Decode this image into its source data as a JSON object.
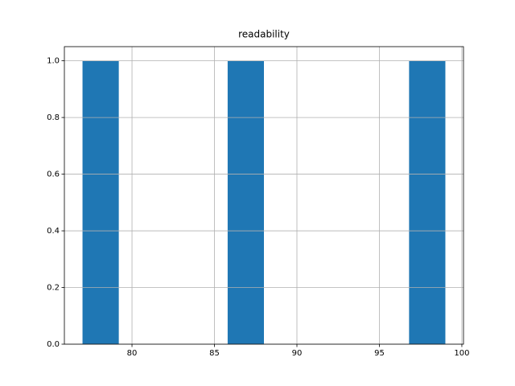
{
  "chart_data": {
    "type": "histogram",
    "title": "readability",
    "bins": [
      77,
      79.2,
      81.4,
      83.6,
      85.8,
      88,
      90.2,
      92.4,
      94.6,
      96.8,
      99
    ],
    "counts": [
      1,
      0,
      0,
      0,
      1,
      0,
      0,
      0,
      0,
      1
    ],
    "color": "#1f77b4",
    "xlim": [
      75.9,
      100.1
    ],
    "xticks": [
      80,
      85,
      90,
      95,
      100
    ],
    "ylim": [
      0,
      1.05
    ],
    "yticks": [
      {
        "value": 0,
        "label": "0.0"
      },
      {
        "value": 0.2,
        "label": "0.2"
      },
      {
        "value": 0.4,
        "label": "0.4"
      },
      {
        "value": 0.6,
        "label": "0.6"
      },
      {
        "value": 0.8,
        "label": "0.8"
      },
      {
        "value": 1,
        "label": "1.0"
      }
    ],
    "grid": true
  }
}
